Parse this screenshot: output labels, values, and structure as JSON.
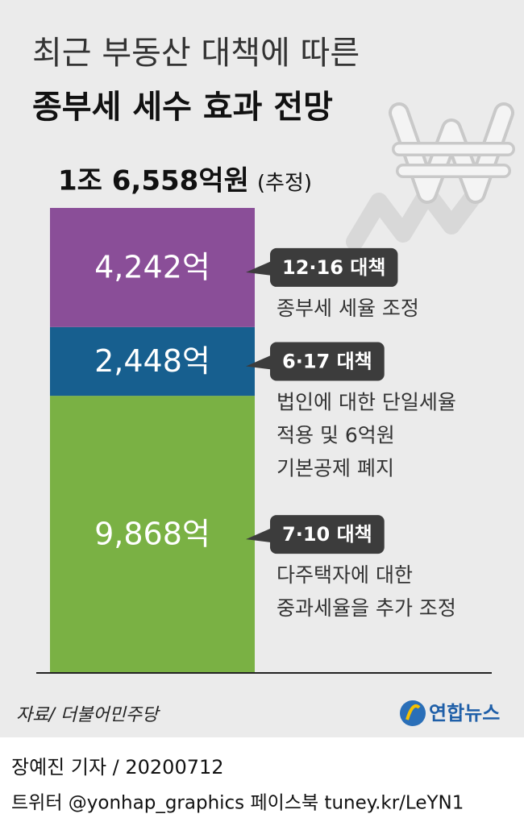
{
  "chart_data": {
    "type": "stacked-bar",
    "title": "최근 부동산 대책에 따른",
    "subtitle": "종부세 세수 효과 전망",
    "total": {
      "value": 16558,
      "label": "1조 6,558억원"
    },
    "total_note": "(추정)",
    "series": [
      {
        "name": "7·10 대책",
        "color": "#7ab144",
        "values": [
          9868
        ],
        "value_labels": [
          "9,868억"
        ],
        "description": [
          "다주택자에 대한",
          "중과세율을 추가 조정"
        ]
      },
      {
        "name": "6·17 대책",
        "color": "#175f8f",
        "values": [
          2448
        ],
        "value_labels": [
          "2,448억"
        ],
        "description": [
          "법인에 대한 단일세율",
          "적용 및 6억원",
          "기본공제 폐지"
        ]
      },
      {
        "name": "12·16 대책",
        "color": "#8a4e98",
        "values": [
          4242
        ],
        "value_labels": [
          "4,242억"
        ],
        "description": [
          "종부세 세율 조정"
        ]
      }
    ],
    "source": "자료/ 더불어민주당",
    "logo": "연합뉴스",
    "credit": "장예진 기자 / 20200712",
    "social": "트위터 @yonhap_graphics  페이스북 tuney.kr/LeYN1"
  }
}
